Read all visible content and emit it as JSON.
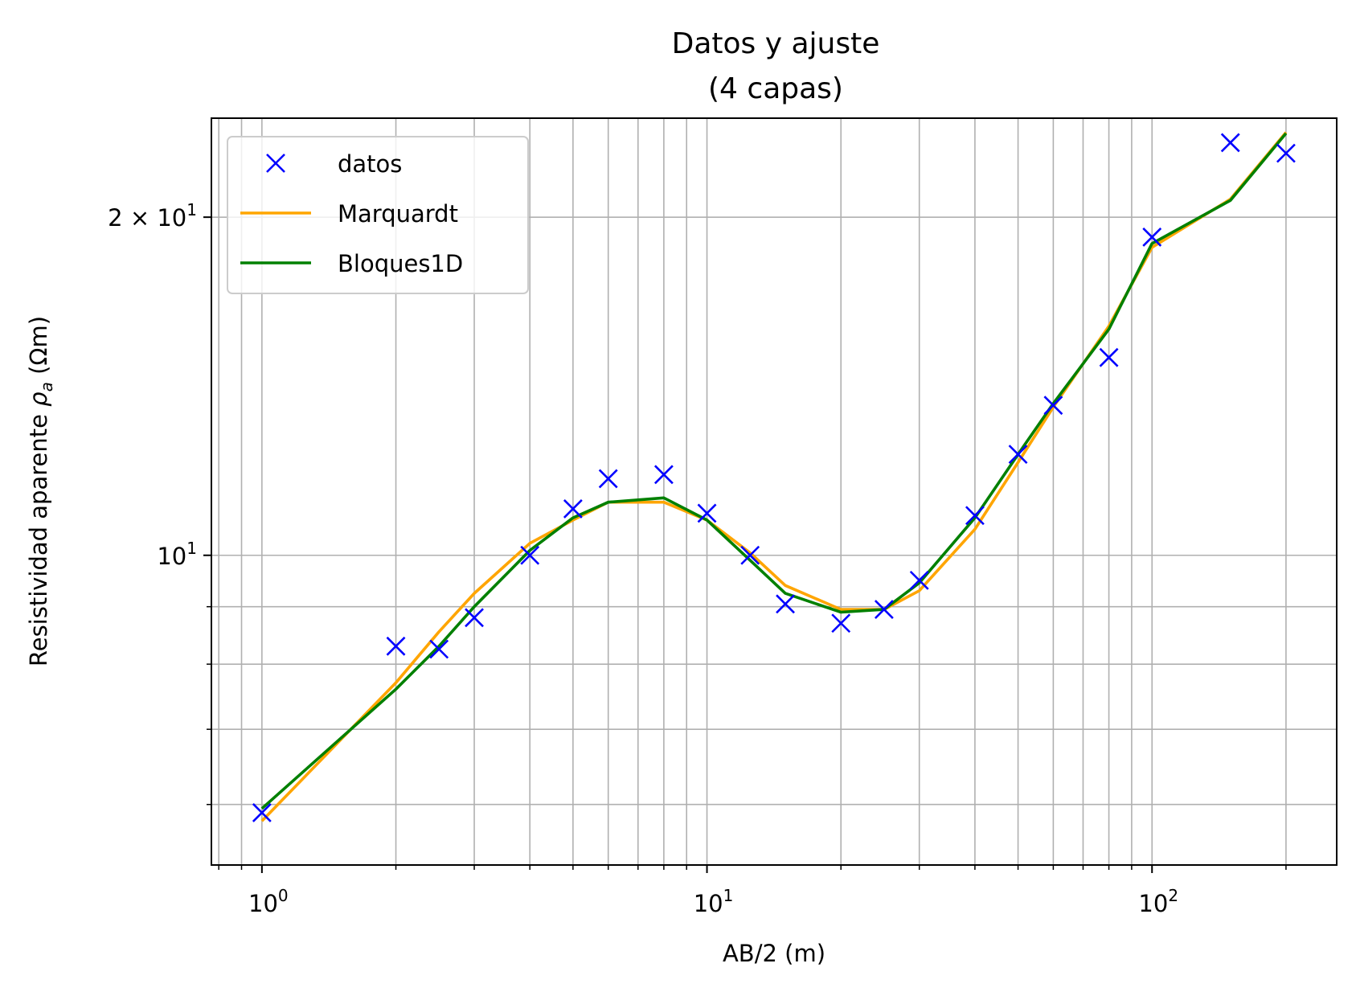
{
  "chart_data": {
    "type": "line",
    "title_line1": "Datos y ajuste",
    "title_line2": "(4 capas)",
    "xlabel": "AB/2 (m)",
    "ylabel": "Resistividad aparente",
    "ylabel_symbol": "ρ",
    "ylabel_subscript": "a",
    "ylabel_unit": "(Ωm)",
    "xscale": "log",
    "yscale": "log",
    "xlim": [
      0.77,
      260
    ],
    "ylim": [
      5.3,
      24.5
    ],
    "grid": true,
    "grid_which": "both",
    "legend_position": "top-left",
    "x_ticks": [
      {
        "value": 1,
        "base": "10",
        "exp": "0"
      },
      {
        "value": 10,
        "base": "10",
        "exp": "1"
      },
      {
        "value": 100,
        "base": "10",
        "exp": "2"
      }
    ],
    "y_ticks": [
      {
        "value": 10,
        "prefix": "",
        "base": "10",
        "exp": "1"
      },
      {
        "value": 20,
        "prefix": "2 × ",
        "base": "10",
        "exp": "1"
      }
    ],
    "y_minor": [
      6,
      7,
      8,
      9
    ],
    "series": [
      {
        "name": "datos",
        "kind": "marker",
        "color": "#0000ff",
        "x": [
          1,
          2,
          2.5,
          3,
          4,
          5,
          6,
          8,
          10,
          12.5,
          15,
          20,
          25,
          30,
          40,
          50,
          60,
          80,
          100,
          150,
          200
        ],
        "y": [
          5.9,
          8.3,
          8.25,
          8.8,
          10.0,
          11.0,
          11.7,
          11.8,
          10.9,
          10.0,
          9.05,
          8.7,
          8.95,
          9.5,
          10.85,
          12.3,
          13.6,
          15.0,
          19.2,
          23.3,
          22.8
        ]
      },
      {
        "name": "Marquardt",
        "kind": "line",
        "color": "#ffa500",
        "x": [
          1,
          2,
          2.5,
          3,
          4,
          5,
          6,
          8,
          10,
          12.5,
          15,
          20,
          25,
          30,
          40,
          50,
          60,
          80,
          100,
          150,
          200
        ],
        "y": [
          5.8,
          7.7,
          8.55,
          9.25,
          10.25,
          10.75,
          11.15,
          11.15,
          10.75,
          10.05,
          9.4,
          8.95,
          8.95,
          9.3,
          10.55,
          12.1,
          13.55,
          16.0,
          18.8,
          20.75,
          23.8
        ]
      },
      {
        "name": "Bloques1D",
        "kind": "line",
        "color": "#008000",
        "x": [
          1,
          2,
          2.5,
          3,
          4,
          5,
          6,
          8,
          10,
          12.5,
          15,
          20,
          25,
          30,
          40,
          50,
          60,
          80,
          100,
          150,
          200
        ],
        "y": [
          5.95,
          7.6,
          8.3,
          9.0,
          10.1,
          10.8,
          11.15,
          11.25,
          10.75,
          9.9,
          9.25,
          8.9,
          8.95,
          9.45,
          10.8,
          12.3,
          13.65,
          15.9,
          18.95,
          20.7,
          23.75
        ]
      }
    ]
  }
}
